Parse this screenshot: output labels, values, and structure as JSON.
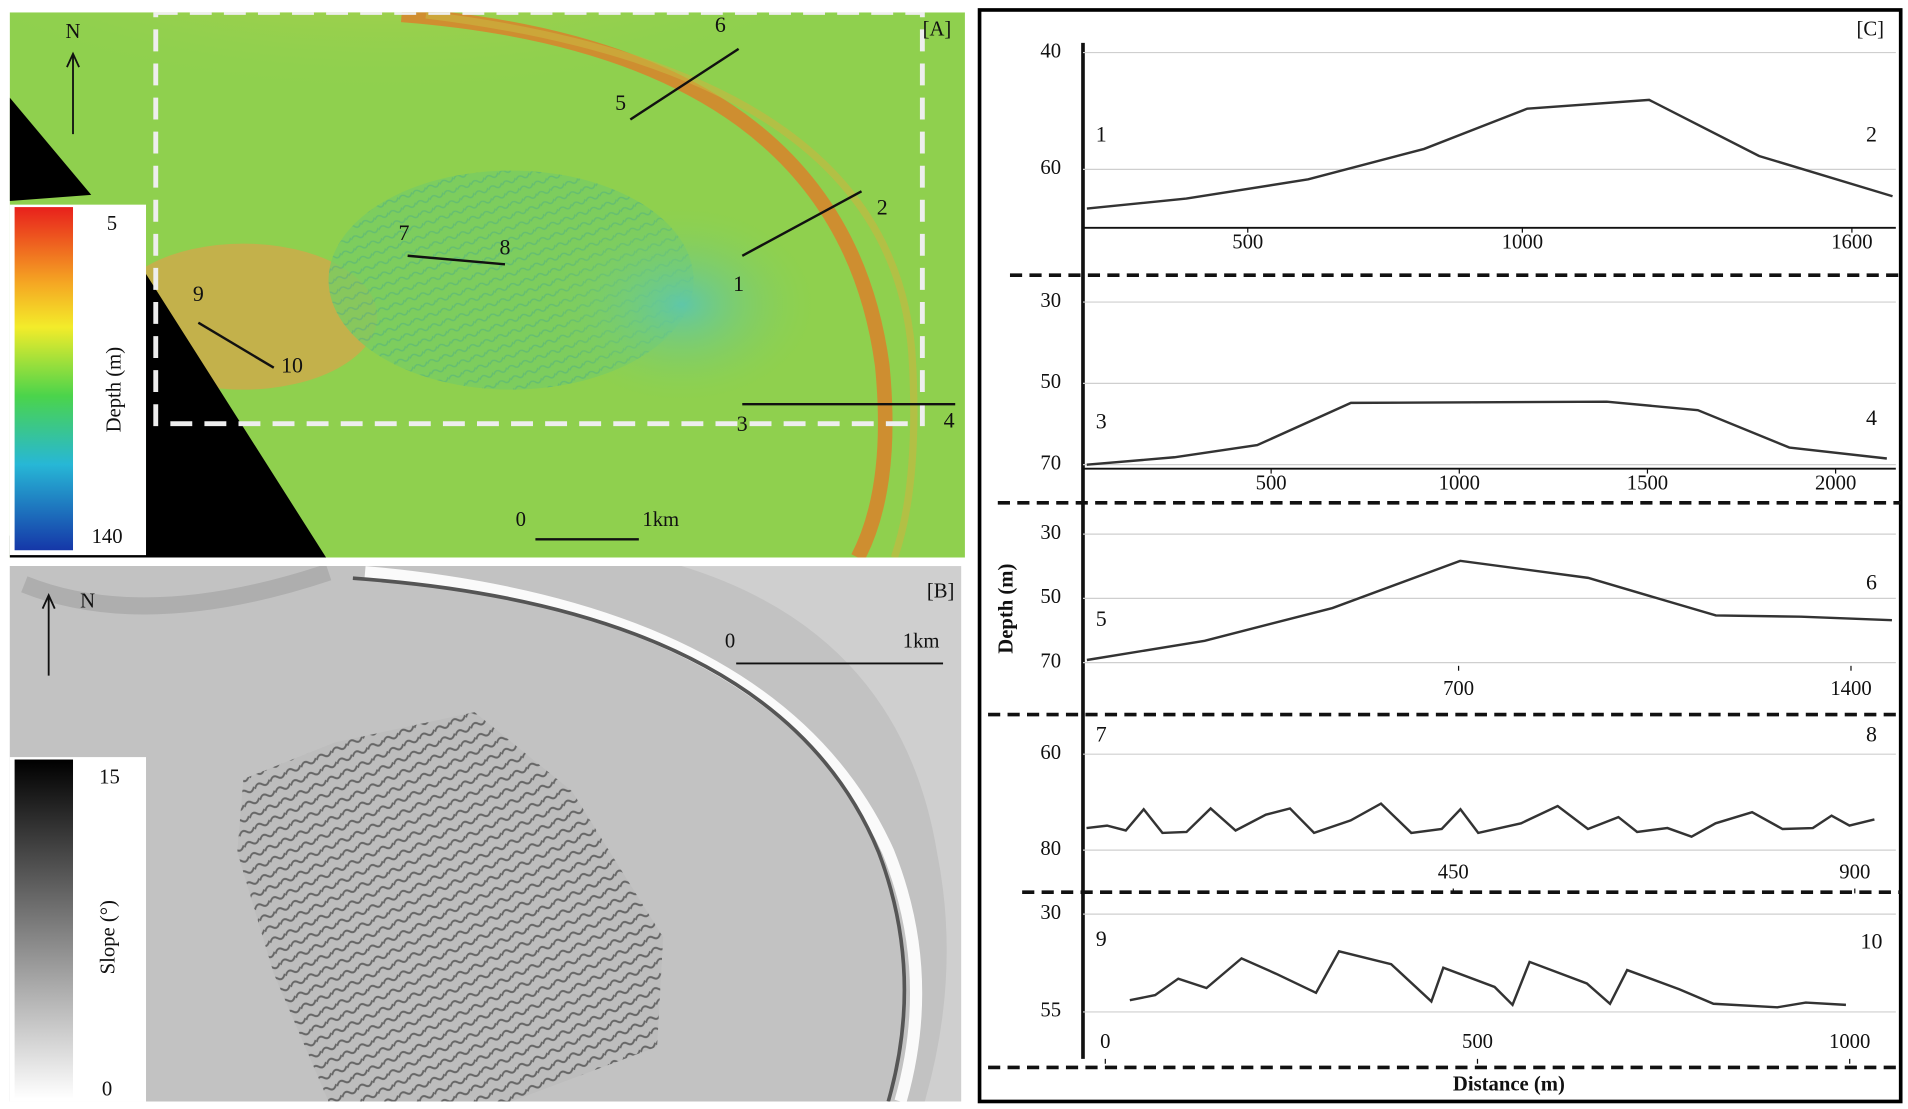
{
  "panel_a": {
    "label": "[A]",
    "north": "N",
    "colorbar_title": "Depth (m)",
    "colorbar_min": "5",
    "colorbar_max": "140",
    "scale_start": "0",
    "scale_end": "1km",
    "profile_labels": [
      "1",
      "2",
      "3",
      "4",
      "5",
      "6",
      "7",
      "8",
      "9",
      "10"
    ]
  },
  "panel_b": {
    "label": "[B]",
    "north": "N",
    "colorbar_title": "Slope (°)",
    "colorbar_max": "15",
    "colorbar_min": "0",
    "scale_start": "0",
    "scale_end": "1km"
  },
  "panel_c": {
    "label": "[C]",
    "y_label": "Depth (m)",
    "x_label": "Distance (m)"
  },
  "chart_data": [
    {
      "type": "line",
      "annotations": [
        "1",
        "2"
      ],
      "x": [
        207,
        388,
        610,
        821,
        1009,
        1231,
        1431,
        1674
      ],
      "values": [
        66.7,
        65,
        61.7,
        56.5,
        49.6,
        48.1,
        57.7,
        64.6
      ],
      "xlim": [
        200,
        1680
      ],
      "ylim": [
        40,
        70
      ],
      "xticks": [
        500,
        1000,
        1600
      ],
      "yticks": [
        40,
        60
      ]
    },
    {
      "type": "line",
      "annotations": [
        "3",
        "4"
      ],
      "x": [
        10,
        243,
        463,
        712,
        1392,
        1634,
        1877,
        2136
      ],
      "values": [
        70,
        68.2,
        65.2,
        54.8,
        54.5,
        56.6,
        65.8,
        68.5
      ],
      "xlim": [
        0,
        2160
      ],
      "ylim": [
        24,
        71
      ],
      "xticks": [
        500,
        1000,
        1500,
        2000
      ],
      "yticks": [
        30,
        50,
        70
      ]
    },
    {
      "type": "line",
      "annotations": [
        "5",
        "6"
      ],
      "x": [
        37,
        247,
        475,
        703,
        931,
        1159,
        1311,
        1473
      ],
      "values": [
        69.2,
        63.2,
        53,
        38.3,
        43.6,
        55.3,
        55.7,
        56.8
      ],
      "xlim": [
        30,
        1480
      ],
      "ylim": [
        21,
        71
      ],
      "xticks": [
        700,
        1400
      ],
      "yticks": [
        30,
        50,
        70
      ]
    },
    {
      "type": "line",
      "annotations": [
        "7",
        "8"
      ],
      "x": [
        39,
        62,
        83,
        103,
        124,
        151,
        178,
        206,
        240,
        267,
        294,
        335,
        369,
        403,
        437,
        458,
        478,
        526,
        567,
        601,
        635,
        656,
        690,
        717,
        744,
        785,
        819,
        853,
        874,
        894,
        922
      ],
      "values": [
        75.4,
        74.9,
        75.9,
        71.5,
        76.4,
        76.2,
        71.3,
        75.9,
        72.6,
        71.3,
        76.4,
        73.8,
        70.3,
        76.4,
        75.6,
        71.5,
        76.4,
        74.4,
        70.8,
        75.6,
        73.1,
        76.2,
        75.4,
        77.2,
        74.4,
        72.1,
        75.6,
        75.4,
        72.8,
        74.9,
        73.6
      ],
      "xlim": [
        35,
        946
      ],
      "ylim": [
        53,
        88
      ],
      "xticks": [
        450,
        900
      ],
      "yticks": [
        60,
        80
      ]
    },
    {
      "type": "line",
      "annotations": [
        "9",
        "10"
      ],
      "x": [
        33,
        67,
        98,
        136,
        183,
        229,
        283,
        314,
        384,
        438,
        454,
        523,
        547,
        570,
        647,
        678,
        701,
        771,
        817,
        903,
        941,
        995
      ],
      "values": [
        52,
        50.7,
        46.5,
        48.9,
        41.3,
        45.2,
        50.1,
        39.5,
        42.8,
        52.3,
        43.7,
        48.6,
        53.2,
        42.2,
        47.7,
        52.9,
        44.3,
        49.2,
        52.9,
        53.8,
        52.6,
        53.2
      ],
      "xlim": [
        -30,
        1062
      ],
      "ylim": [
        25,
        67
      ],
      "xticks": [
        0,
        500,
        1000
      ],
      "yticks": [
        30,
        55
      ]
    }
  ]
}
